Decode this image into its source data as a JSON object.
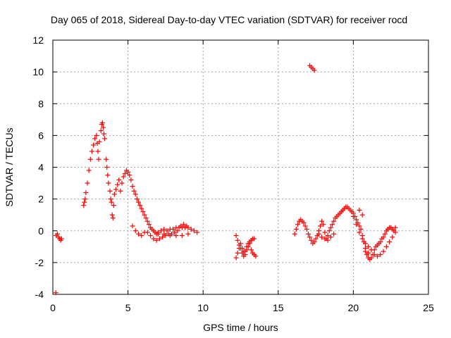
{
  "chart_data": {
    "type": "scatter",
    "title": "Day 065 of 2018, Sidereal Day-to-day VTEC variation (SDTVAR) for receiver rocd",
    "xlabel": "GPS time / hours",
    "ylabel": "SDTVAR / TECUs",
    "xlim": [
      0,
      25
    ],
    "ylim": [
      -4,
      12
    ],
    "xticks": [
      0,
      5,
      10,
      15,
      20,
      25
    ],
    "yticks": [
      -4,
      -2,
      0,
      2,
      4,
      6,
      8,
      10,
      12
    ],
    "grid": true,
    "marker": "+",
    "marker_color": "#ff0000",
    "series": [
      {
        "name": "rocd",
        "points": [
          [
            0.2,
            -3.9
          ],
          [
            0.22,
            -0.3
          ],
          [
            0.3,
            -0.2
          ],
          [
            0.38,
            -0.4
          ],
          [
            0.45,
            -0.5
          ],
          [
            0.52,
            -0.6
          ],
          [
            0.58,
            -0.5
          ],
          [
            2.05,
            1.6
          ],
          [
            2.1,
            1.8
          ],
          [
            2.15,
            2.0
          ],
          [
            2.2,
            2.4
          ],
          [
            2.3,
            3.0
          ],
          [
            2.4,
            3.8
          ],
          [
            2.5,
            4.5
          ],
          [
            2.6,
            5.0
          ],
          [
            2.7,
            5.4
          ],
          [
            2.8,
            5.8
          ],
          [
            2.9,
            6.0
          ],
          [
            2.95,
            5.5
          ],
          [
            3.0,
            5.0
          ],
          [
            3.05,
            4.5
          ],
          [
            3.1,
            5.6
          ],
          [
            3.2,
            6.3
          ],
          [
            3.25,
            6.7
          ],
          [
            3.3,
            6.8
          ],
          [
            3.35,
            6.5
          ],
          [
            3.4,
            6.1
          ],
          [
            3.45,
            5.8
          ],
          [
            3.55,
            4.5
          ],
          [
            3.6,
            4.0
          ],
          [
            3.65,
            3.5
          ],
          [
            3.7,
            3.0
          ],
          [
            3.8,
            2.5
          ],
          [
            3.85,
            2.0
          ],
          [
            3.9,
            1.8
          ],
          [
            3.95,
            1.0
          ],
          [
            4.0,
            0.8
          ],
          [
            4.05,
            1.6
          ],
          [
            4.1,
            2.3
          ],
          [
            4.2,
            2.6
          ],
          [
            4.3,
            2.9
          ],
          [
            4.4,
            3.2
          ],
          [
            4.5,
            2.5
          ],
          [
            4.6,
            3.0
          ],
          [
            4.7,
            3.4
          ],
          [
            4.8,
            3.6
          ],
          [
            4.9,
            3.8
          ],
          [
            5.0,
            3.7
          ],
          [
            5.1,
            3.5
          ],
          [
            5.2,
            3.2
          ],
          [
            5.3,
            2.8
          ],
          [
            5.4,
            2.5
          ],
          [
            5.5,
            2.3
          ],
          [
            5.6,
            2.0
          ],
          [
            5.7,
            1.8
          ],
          [
            5.8,
            1.6
          ],
          [
            5.9,
            1.4
          ],
          [
            6.0,
            1.2
          ],
          [
            6.1,
            1.0
          ],
          [
            6.2,
            0.8
          ],
          [
            6.3,
            0.6
          ],
          [
            6.4,
            0.4
          ],
          [
            6.5,
            0.2
          ],
          [
            6.6,
            0.1
          ],
          [
            6.7,
            0.0
          ],
          [
            6.8,
            -0.1
          ],
          [
            6.9,
            -0.2
          ],
          [
            7.0,
            -0.1
          ],
          [
            7.2,
            0.0
          ],
          [
            7.4,
            0.1
          ],
          [
            7.6,
            0.0
          ],
          [
            7.8,
            0.1
          ],
          [
            8.0,
            0.1
          ],
          [
            8.2,
            0.2
          ],
          [
            8.4,
            0.2
          ],
          [
            8.6,
            0.2
          ],
          [
            8.8,
            0.2
          ],
          [
            9.0,
            0.2
          ],
          [
            9.2,
            0.1
          ],
          [
            9.4,
            0.0
          ],
          [
            9.6,
            -0.1
          ],
          [
            5.3,
            0.3
          ],
          [
            5.5,
            0.0
          ],
          [
            5.7,
            -0.2
          ],
          [
            5.9,
            -0.3
          ],
          [
            6.1,
            -0.1
          ],
          [
            6.3,
            -0.1
          ],
          [
            6.5,
            -0.3
          ],
          [
            6.7,
            -0.5
          ],
          [
            6.9,
            -0.6
          ],
          [
            7.1,
            -0.5
          ],
          [
            7.3,
            -0.4
          ],
          [
            7.5,
            -0.3
          ],
          [
            7.7,
            -0.2
          ],
          [
            7.9,
            -0.2
          ],
          [
            8.1,
            -0.1
          ],
          [
            8.3,
            0.0
          ],
          [
            8.5,
            0.3
          ],
          [
            8.7,
            0.4
          ],
          [
            8.9,
            0.3
          ],
          [
            7.0,
            -0.2
          ],
          [
            7.4,
            -0.2
          ],
          [
            7.8,
            -0.3
          ],
          [
            8.2,
            -0.3
          ],
          [
            8.6,
            -0.3
          ],
          [
            9.0,
            -0.2
          ],
          [
            12.2,
            -1.7
          ],
          [
            12.3,
            -1.4
          ],
          [
            12.4,
            -1.1
          ],
          [
            12.5,
            -0.8
          ],
          [
            12.6,
            -1.1
          ],
          [
            12.7,
            -1.3
          ],
          [
            12.8,
            -1.5
          ],
          [
            12.9,
            -1.2
          ],
          [
            13.0,
            -1.0
          ],
          [
            13.1,
            -0.8
          ],
          [
            13.2,
            -1.2
          ],
          [
            13.3,
            -1.4
          ],
          [
            13.4,
            -1.5
          ],
          [
            13.5,
            -1.6
          ],
          [
            12.2,
            -0.3
          ],
          [
            12.3,
            -0.6
          ],
          [
            12.4,
            -0.9
          ],
          [
            12.5,
            -1.1
          ],
          [
            12.6,
            -1.4
          ],
          [
            12.7,
            -1.6
          ],
          [
            12.8,
            -1.3
          ],
          [
            12.9,
            -1.0
          ],
          [
            13.0,
            -0.8
          ],
          [
            13.1,
            -0.7
          ],
          [
            13.2,
            -0.6
          ],
          [
            13.3,
            -0.5
          ],
          [
            13.4,
            -0.5
          ],
          [
            17.1,
            10.4
          ],
          [
            17.2,
            10.3
          ],
          [
            17.3,
            10.2
          ],
          [
            17.4,
            10.1
          ],
          [
            16.1,
            -0.2
          ],
          [
            16.2,
            0.1
          ],
          [
            16.3,
            0.4
          ],
          [
            16.4,
            0.6
          ],
          [
            16.5,
            0.7
          ],
          [
            16.6,
            0.6
          ],
          [
            16.7,
            0.5
          ],
          [
            16.8,
            0.3
          ],
          [
            16.9,
            0.1
          ],
          [
            17.0,
            -0.2
          ],
          [
            17.1,
            -0.4
          ],
          [
            17.2,
            -0.6
          ],
          [
            17.3,
            -0.8
          ],
          [
            17.4,
            -0.7
          ],
          [
            17.5,
            -0.5
          ],
          [
            17.6,
            -0.3
          ],
          [
            17.7,
            0.0
          ],
          [
            17.8,
            0.3
          ],
          [
            17.9,
            0.6
          ],
          [
            18.0,
            0.4
          ],
          [
            18.1,
            -0.1
          ],
          [
            18.2,
            -0.5
          ],
          [
            18.3,
            -0.3
          ],
          [
            18.4,
            0.0
          ],
          [
            18.5,
            0.2
          ],
          [
            18.6,
            0.4
          ],
          [
            18.7,
            0.6
          ],
          [
            18.8,
            0.8
          ],
          [
            18.9,
            0.9
          ],
          [
            19.0,
            1.0
          ],
          [
            19.1,
            1.1
          ],
          [
            19.2,
            1.2
          ],
          [
            19.3,
            1.3
          ],
          [
            19.4,
            1.4
          ],
          [
            19.5,
            1.5
          ],
          [
            19.6,
            1.5
          ],
          [
            19.7,
            1.4
          ],
          [
            19.8,
            1.3
          ],
          [
            19.9,
            1.2
          ],
          [
            20.0,
            1.1
          ],
          [
            20.1,
            0.9
          ],
          [
            20.2,
            0.7
          ],
          [
            20.3,
            0.5
          ],
          [
            20.4,
            0.3
          ],
          [
            20.5,
            0.1
          ],
          [
            20.6,
            -0.3
          ],
          [
            20.7,
            -0.7
          ],
          [
            20.8,
            -1.1
          ],
          [
            20.9,
            -1.5
          ],
          [
            21.0,
            -1.7
          ],
          [
            21.1,
            -1.8
          ],
          [
            21.2,
            -1.7
          ],
          [
            21.3,
            -1.5
          ],
          [
            21.4,
            -1.2
          ],
          [
            21.5,
            -1.0
          ],
          [
            21.6,
            -0.9
          ],
          [
            21.7,
            -0.8
          ],
          [
            21.8,
            -0.7
          ],
          [
            21.9,
            -0.5
          ],
          [
            22.0,
            -0.4
          ],
          [
            22.1,
            -0.2
          ],
          [
            22.2,
            0.0
          ],
          [
            22.3,
            0.1
          ],
          [
            22.4,
            0.2
          ],
          [
            22.5,
            0.2
          ],
          [
            22.6,
            0.1
          ],
          [
            22.7,
            0.0
          ],
          [
            22.8,
            0.2
          ],
          [
            17.7,
            -0.2
          ],
          [
            17.9,
            -0.4
          ],
          [
            18.1,
            -0.5
          ],
          [
            18.3,
            -0.6
          ],
          [
            18.5,
            -0.4
          ],
          [
            18.7,
            -0.2
          ],
          [
            20.0,
            0.9
          ],
          [
            20.2,
            0.4
          ],
          [
            20.4,
            -0.1
          ],
          [
            20.6,
            -0.5
          ],
          [
            20.8,
            -0.8
          ],
          [
            21.0,
            -1.0
          ],
          [
            21.2,
            -1.2
          ],
          [
            21.4,
            -1.5
          ],
          [
            21.6,
            -1.6
          ],
          [
            21.8,
            -1.5
          ],
          [
            22.0,
            -1.3
          ],
          [
            22.2,
            -1.0
          ],
          [
            22.4,
            -0.7
          ],
          [
            22.6,
            -0.4
          ],
          [
            22.8,
            -0.1
          ],
          [
            20.4,
            1.3
          ],
          [
            20.6,
            1.0
          ],
          [
            20.8,
            -1.3
          ],
          [
            21.0,
            -1.4
          ]
        ]
      }
    ]
  }
}
